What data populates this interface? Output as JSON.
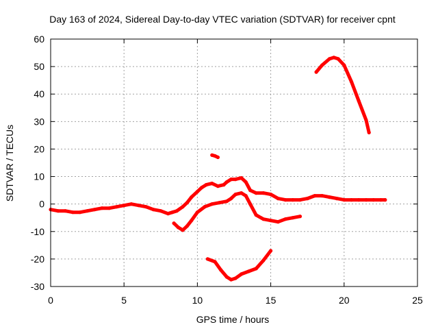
{
  "chart_data": {
    "type": "scatter",
    "title": "Day 163 of 2024, Sidereal Day-to-day VTEC variation (SDTVAR) for receiver cpnt",
    "xlabel": "GPS time / hours",
    "ylabel": "SDTVAR / TECUs",
    "xlim": [
      0,
      25
    ],
    "ylim": [
      -30,
      60
    ],
    "xticks": [
      0,
      5,
      10,
      15,
      20,
      25
    ],
    "yticks": [
      -30,
      -20,
      -10,
      0,
      10,
      20,
      30,
      40,
      50,
      60
    ],
    "grid": true,
    "color": "#ff0000",
    "series": [
      {
        "name": "main-trace",
        "x": [
          0.0,
          0.5,
          1.0,
          1.5,
          2.0,
          2.5,
          3.0,
          3.5,
          4.0,
          4.5,
          5.0,
          5.5,
          6.0,
          6.5,
          7.0,
          7.5,
          8.0,
          8.3,
          8.6,
          9.0,
          9.3,
          9.6,
          10.0,
          10.3,
          10.6,
          11.0,
          11.4,
          11.8,
          12.0,
          12.3,
          12.6,
          13.0,
          13.3,
          13.6,
          14.0,
          14.5,
          15.0,
          15.5,
          16.0,
          16.5,
          17.0,
          17.5,
          18.0,
          18.5,
          19.0,
          19.5,
          20.0,
          20.5,
          21.0,
          21.5,
          22.0,
          22.5,
          22.8
        ],
        "y": [
          -2.0,
          -2.5,
          -2.5,
          -3.0,
          -3.0,
          -2.5,
          -2.0,
          -1.5,
          -1.5,
          -1.0,
          -0.5,
          0.0,
          -0.5,
          -1.0,
          -2.0,
          -2.5,
          -3.5,
          -3.0,
          -2.5,
          -1.0,
          0.5,
          2.5,
          4.5,
          6.0,
          7.0,
          7.5,
          6.5,
          7.0,
          8.0,
          9.0,
          9.0,
          9.5,
          8.0,
          5.0,
          4.0,
          4.0,
          3.5,
          2.0,
          1.5,
          1.5,
          1.5,
          2.0,
          3.0,
          3.0,
          2.5,
          2.0,
          1.5,
          1.5,
          1.5,
          1.5,
          1.5,
          1.5,
          1.5
        ]
      },
      {
        "name": "lower-trace",
        "x": [
          8.4,
          8.7,
          9.0,
          9.3,
          9.6,
          10.0,
          10.5,
          11.0,
          11.5,
          12.0,
          12.3,
          12.6,
          13.0,
          13.3,
          13.6,
          14.0,
          14.5,
          15.0,
          15.5,
          16.0,
          16.5,
          17.0
        ],
        "y": [
          -7.0,
          -8.5,
          -9.5,
          -8.0,
          -6.0,
          -3.0,
          -1.0,
          0.0,
          0.5,
          1.0,
          2.0,
          3.5,
          4.0,
          3.0,
          0.0,
          -4.0,
          -5.5,
          -6.0,
          -6.5,
          -5.5,
          -5.0,
          -4.5
        ]
      },
      {
        "name": "bottom-arc",
        "x": [
          10.7,
          11.2,
          11.6,
          12.0,
          12.3,
          12.6,
          13.0,
          13.5,
          14.0,
          14.5,
          15.0
        ],
        "y": [
          -20.0,
          -21.0,
          -24.0,
          -26.5,
          -27.5,
          -27.0,
          -25.5,
          -24.5,
          -23.5,
          -20.5,
          -17.0
        ]
      },
      {
        "name": "isolated-points",
        "x": [
          11.0,
          11.2,
          11.4
        ],
        "y": [
          17.8,
          17.5,
          17.0
        ]
      },
      {
        "name": "upper-arc",
        "x": [
          18.1,
          18.5,
          19.0,
          19.3,
          19.6,
          20.0,
          20.5,
          21.0,
          21.5,
          21.7
        ],
        "y": [
          48.0,
          50.5,
          52.8,
          53.3,
          52.8,
          50.5,
          44.5,
          37.5,
          30.5,
          26.0
        ]
      }
    ]
  }
}
